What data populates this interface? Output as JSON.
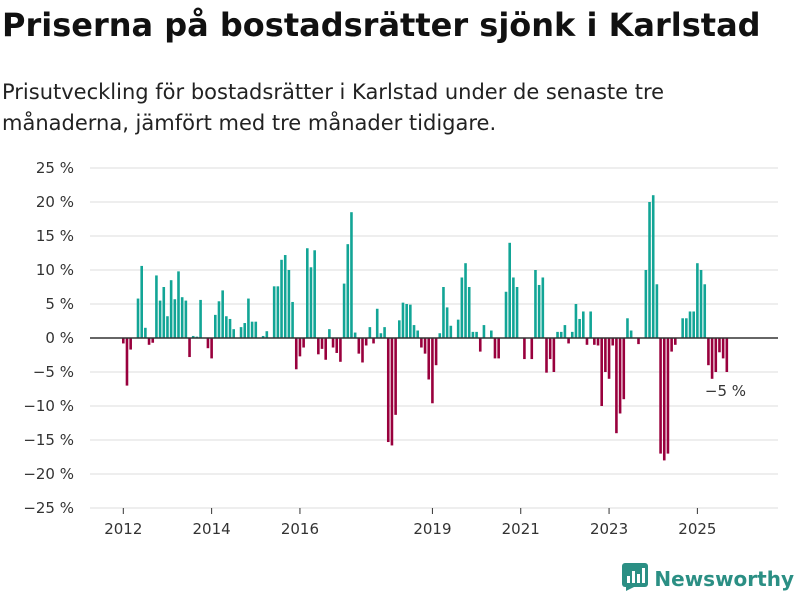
{
  "title": "Priserna på bostadsrätter sjönk i Karlstad",
  "subtitle": "Prisutveckling för bostadsrätter i Karlstad under de senaste tre månaderna, jämfört med tre månader tidigare.",
  "brand": {
    "name": "Newsworthy",
    "icon": "newsworthy-logo-icon"
  },
  "colors": {
    "positive": "#12a596",
    "negative": "#99003d",
    "grid": "#dddddd",
    "zero": "#333333"
  },
  "chart_data": {
    "type": "bar",
    "ylim": [
      -25,
      25
    ],
    "y_ticks": [
      25,
      20,
      15,
      10,
      5,
      0,
      -5,
      -10,
      -15,
      -20,
      -25
    ],
    "y_tick_labels": [
      "25 %",
      "20 %",
      "15 %",
      "10 %",
      "5 %",
      "0 %",
      "−5 %",
      "−10 %",
      "−15 %",
      "−20 %",
      "−25 %"
    ],
    "x_tick_labels": [
      "2012",
      "2014",
      "2016",
      "2019",
      "2021",
      "2023",
      "2025"
    ],
    "x_tick_years": [
      2012,
      2014,
      2016,
      2019,
      2021,
      2023,
      2025
    ],
    "x_start_year": 2012,
    "annotation": "−5 %",
    "values": [
      -0.8,
      -7,
      -1.7,
      0,
      5.8,
      10.6,
      1.5,
      -1,
      -0.7,
      9.2,
      5.5,
      7.5,
      3.2,
      8.5,
      5.7,
      9.8,
      6,
      5.5,
      -2.8,
      0.3,
      0.2,
      5.6,
      0,
      -1.5,
      -3,
      3.4,
      5.4,
      7,
      3.2,
      2.8,
      1.3,
      0,
      1.6,
      2.2,
      5.8,
      2.4,
      2.4,
      0,
      0.3,
      1,
      0,
      7.6,
      7.6,
      11.5,
      12.2,
      10,
      5.3,
      -4.6,
      -2.7,
      -1.4,
      13.2,
      10.4,
      12.9,
      -2.4,
      -1.6,
      -3.2,
      1.3,
      -1.4,
      -2.2,
      -3.5,
      8,
      13.8,
      18.5,
      0.8,
      -2.3,
      -3.6,
      -1.1,
      1.6,
      -0.8,
      4.3,
      0.7,
      1.6,
      -15.3,
      -15.8,
      -11.3,
      2.6,
      5.2,
      5,
      4.9,
      1.9,
      1.1,
      -1.4,
      -2.3,
      -6.1,
      -9.6,
      -4,
      0.7,
      7.5,
      4.5,
      1.8,
      0,
      2.7,
      8.9,
      11,
      7.5,
      0.9,
      0.9,
      -2,
      1.9,
      0,
      1.1,
      -3,
      -3,
      0,
      6.8,
      14,
      8.9,
      7.5,
      0,
      -3.1,
      0,
      -3.1,
      10,
      7.8,
      8.9,
      -5.1,
      -3.1,
      -5,
      0.9,
      0.9,
      1.9,
      -0.8,
      0.9,
      5,
      2.8,
      3.9,
      -1,
      3.9,
      -1,
      -1.1,
      -10,
      -5,
      -6,
      -1.1,
      -14,
      -11.1,
      -9,
      2.9,
      1.1,
      0,
      -0.9,
      0,
      10,
      20,
      21,
      7.9,
      -17,
      -18,
      -17,
      -2,
      -1,
      0,
      2.9,
      2.9,
      3.9,
      3.9,
      11,
      10,
      7.9,
      -4,
      -6,
      -5,
      -2.1,
      -3,
      -5
    ]
  }
}
